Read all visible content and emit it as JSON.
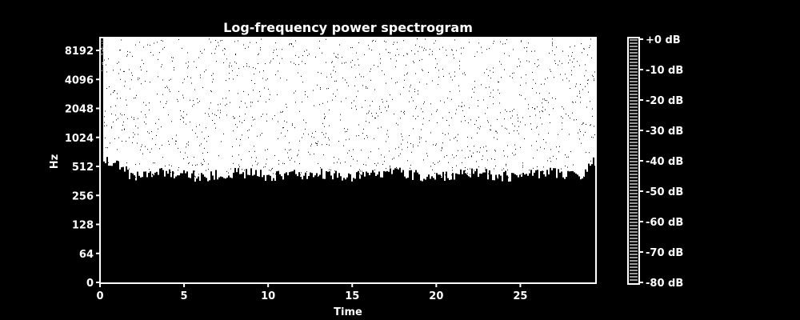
{
  "chart_data": {
    "type": "heatmap",
    "title": "Log-frequency power spectrogram",
    "xlabel": "Time",
    "ylabel": "Hz",
    "xlim": [
      0,
      29.5
    ],
    "x_ticks": [
      0,
      5,
      10,
      15,
      20,
      25
    ],
    "y_scale": "log2",
    "y_ticks": [
      "0",
      "64",
      "128",
      "256",
      "512",
      "1024",
      "2048",
      "4096",
      "8192"
    ],
    "colorbar": {
      "ticks": [
        "+0 dB",
        "-10 dB",
        "-20 dB",
        "-30 dB",
        "-40 dB",
        "-50 dB",
        "-60 dB",
        "-70 dB",
        "-80 dB"
      ],
      "range_db": [
        -80,
        0
      ]
    },
    "energy_floor_hz": 420,
    "energy_floor_hz_edges": 600,
    "colors": {
      "background": "#000000",
      "energy": "#ffffff",
      "frame": "#ffffff"
    },
    "grid": false
  }
}
